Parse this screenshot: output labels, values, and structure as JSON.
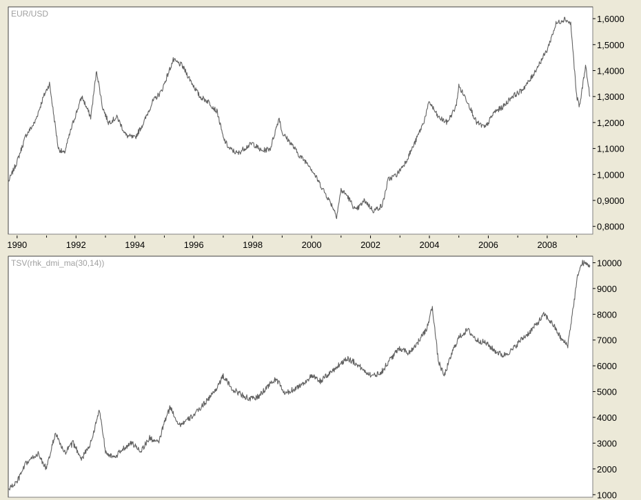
{
  "chart_data": [
    {
      "type": "line",
      "title": "EUR/USD",
      "xlabel": "",
      "ylabel": "",
      "xlim": [
        1989.7,
        2009.5
      ],
      "ylim": [
        0.77,
        1.64
      ],
      "grid": false,
      "y_ticks": [
        0.8,
        0.9,
        1.0,
        1.1,
        1.2,
        1.3,
        1.4,
        1.5,
        1.6
      ],
      "y_tick_labels": [
        "0,8000",
        "0,9000",
        "1,0000",
        "1,1000",
        "1,2000",
        "1,3000",
        "1,4000",
        "1,5000",
        "1,6000"
      ],
      "x_ticks": [
        1990,
        1992,
        1994,
        1996,
        1998,
        2000,
        2002,
        2004,
        2006,
        2008
      ],
      "x_tick_labels": [
        "1990",
        "1992",
        "1994",
        "1996",
        "1998",
        "2000",
        "2002",
        "2004",
        "2006",
        "2008"
      ],
      "series": [
        {
          "color": "#606060",
          "x": [
            1989.7,
            1990.0,
            1990.3,
            1990.6,
            1990.9,
            1991.1,
            1991.4,
            1991.6,
            1991.9,
            1992.2,
            1992.5,
            1992.7,
            1992.9,
            1993.1,
            1993.4,
            1993.7,
            1994.0,
            1994.3,
            1994.6,
            1994.9,
            1995.1,
            1995.3,
            1995.6,
            1995.9,
            1996.2,
            1996.5,
            1996.8,
            1997.0,
            1997.2,
            1997.5,
            1997.7,
            1998.0,
            1998.3,
            1998.6,
            1998.9,
            1999.0,
            1999.3,
            1999.6,
            1999.9,
            2000.1,
            2000.4,
            2000.7,
            2000.85,
            2001.0,
            2001.2,
            2001.5,
            2001.8,
            2002.1,
            2002.4,
            2002.6,
            2002.9,
            2003.2,
            2003.5,
            2003.8,
            2004.0,
            2004.3,
            2004.6,
            2004.9,
            2005.0,
            2005.3,
            2005.6,
            2005.9,
            2006.2,
            2006.5,
            2006.8,
            2007.1,
            2007.4,
            2007.7,
            2008.0,
            2008.3,
            2008.6,
            2008.8,
            2009.0,
            2009.1,
            2009.3,
            2009.45
          ],
          "y": [
            0.97,
            1.05,
            1.15,
            1.2,
            1.3,
            1.35,
            1.1,
            1.08,
            1.2,
            1.3,
            1.22,
            1.4,
            1.26,
            1.2,
            1.22,
            1.15,
            1.14,
            1.2,
            1.28,
            1.32,
            1.38,
            1.44,
            1.42,
            1.36,
            1.3,
            1.28,
            1.24,
            1.14,
            1.1,
            1.08,
            1.1,
            1.12,
            1.09,
            1.1,
            1.22,
            1.16,
            1.12,
            1.07,
            1.04,
            1.0,
            0.94,
            0.88,
            0.84,
            0.94,
            0.92,
            0.86,
            0.9,
            0.86,
            0.88,
            0.98,
            1.0,
            1.05,
            1.12,
            1.2,
            1.28,
            1.22,
            1.2,
            1.26,
            1.34,
            1.28,
            1.2,
            1.18,
            1.24,
            1.26,
            1.3,
            1.32,
            1.36,
            1.42,
            1.48,
            1.58,
            1.6,
            1.58,
            1.3,
            1.26,
            1.42,
            1.3
          ]
        }
      ]
    },
    {
      "type": "line",
      "title": "TSV(rhk_dmi_ma(30,14))",
      "xlabel": "",
      "ylabel": "",
      "xlim": [
        1989.7,
        2009.5
      ],
      "ylim": [
        900,
        10200
      ],
      "grid": false,
      "y_ticks": [
        1000,
        2000,
        3000,
        4000,
        5000,
        6000,
        7000,
        8000,
        9000,
        10000
      ],
      "y_tick_labels": [
        "1000",
        "2000",
        "3000",
        "4000",
        "5000",
        "6000",
        "7000",
        "8000",
        "9000",
        "10000"
      ],
      "series": [
        {
          "color": "#606060",
          "x": [
            1989.7,
            1990.0,
            1990.3,
            1990.7,
            1991.0,
            1991.3,
            1991.6,
            1991.9,
            1992.2,
            1992.5,
            1992.8,
            1993.0,
            1993.3,
            1993.6,
            1993.9,
            1994.2,
            1994.5,
            1994.8,
            1995.0,
            1995.2,
            1995.5,
            1995.8,
            1996.1,
            1996.4,
            1996.7,
            1997.0,
            1997.3,
            1997.6,
            1997.9,
            1998.2,
            1998.5,
            1998.8,
            1999.1,
            1999.4,
            1999.7,
            2000.0,
            2000.3,
            2000.6,
            2000.9,
            2001.2,
            2001.5,
            2001.8,
            2002.1,
            2002.4,
            2002.7,
            2003.0,
            2003.3,
            2003.6,
            2003.9,
            2004.1,
            2004.3,
            2004.5,
            2004.8,
            2005.0,
            2005.3,
            2005.6,
            2005.9,
            2006.2,
            2006.5,
            2006.8,
            2007.1,
            2007.4,
            2007.7,
            2007.9,
            2008.2,
            2008.5,
            2008.7,
            2008.9,
            2009.05,
            2009.2,
            2009.45
          ],
          "y": [
            1200,
            1500,
            2200,
            2600,
            2000,
            3400,
            2600,
            3000,
            2400,
            3000,
            4300,
            2700,
            2400,
            2800,
            3000,
            2700,
            3200,
            3000,
            3800,
            4400,
            3700,
            3900,
            4200,
            4600,
            5000,
            5600,
            5100,
            4900,
            4700,
            4800,
            5200,
            5500,
            4900,
            5100,
            5300,
            5600,
            5400,
            5700,
            6000,
            6300,
            6100,
            5800,
            5600,
            5800,
            6300,
            6700,
            6500,
            6900,
            7400,
            8300,
            6200,
            5600,
            6600,
            7100,
            7400,
            7000,
            6900,
            6600,
            6400,
            6600,
            7000,
            7300,
            7700,
            8000,
            7600,
            7000,
            6800,
            8400,
            9600,
            10000,
            9900
          ]
        }
      ]
    }
  ]
}
